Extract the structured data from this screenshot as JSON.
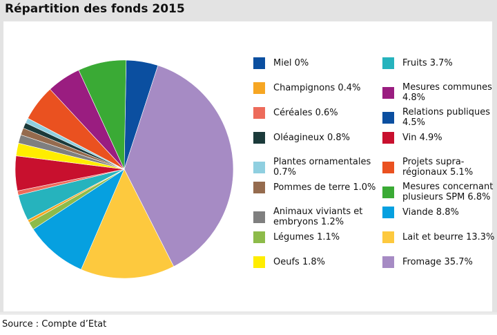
{
  "title": "Répartition des fonds 2015",
  "source": "Source : Compte d’Etat",
  "chart_data": {
    "type": "pie",
    "title": "Répartition des fonds 2015",
    "unit": "%",
    "legend_placement": "right",
    "slices": [
      {
        "name": "Relations publiques",
        "value": 4.5,
        "color": "#0b4fa0",
        "label": "Relations publiques 4.5%"
      },
      {
        "name": "Fromage",
        "value": 35.7,
        "color": "#a68bc4",
        "label": "Fromage 35.7%"
      },
      {
        "name": "Lait et beurre",
        "value": 13.3,
        "color": "#fdc93e",
        "label": "Lait et beurre 13.3%"
      },
      {
        "name": "Viande",
        "value": 8.8,
        "color": "#06a0e0",
        "label": "Viande 8.8%"
      },
      {
        "name": "Légumes",
        "value": 1.1,
        "color": "#8dbb4a",
        "label": "Légumes 1.1%"
      },
      {
        "name": "Champignons",
        "value": 0.4,
        "color": "#f6a623",
        "label": "Champignons 0.4%"
      },
      {
        "name": "Fruits",
        "value": 3.7,
        "color": "#26b3bd",
        "label": "Fruits 3.7%"
      },
      {
        "name": "Céréales",
        "value": 0.6,
        "color": "#ed6b5b",
        "label": "Céréales 0.6%"
      },
      {
        "name": "Vin",
        "value": 4.9,
        "color": "#c8102e",
        "label": "Vin 4.9%"
      },
      {
        "name": "Oeufs",
        "value": 1.8,
        "color": "#ffed00",
        "label": "Oeufs 1.8%"
      },
      {
        "name": "Animaux viviants et embryons",
        "value": 1.2,
        "color": "#7f7f7f",
        "label": "Animaux viviants et embryons 1.2%"
      },
      {
        "name": "Pommes de terre",
        "value": 1.0,
        "color": "#956b4e",
        "label": "Pommes de terre 1.0%"
      },
      {
        "name": "Oléagineux",
        "value": 0.8,
        "color": "#1b3a3a",
        "label": "Oléagineux 0.8%"
      },
      {
        "name": "Plantes ornamentales",
        "value": 0.7,
        "color": "#8fcfe0",
        "label": "Plantes ornamentales 0.7%"
      },
      {
        "name": "Miel",
        "value": 0,
        "color": "#0b4fa0",
        "label": "Miel 0%"
      },
      {
        "name": "Projets supra-régionaux",
        "value": 5.1,
        "color": "#ea5120",
        "label": "Projets supra-régionaux 5.1%"
      },
      {
        "name": "Mesures communes",
        "value": 4.8,
        "color": "#9a1d80",
        "label": "Mesures communes 4.8%"
      },
      {
        "name": "Mesures concernant plusieurs SPM",
        "value": 6.8,
        "color": "#3aaa35",
        "label": "Mesures concernant plusieurs SPM 6.8%"
      }
    ],
    "legend": {
      "left": [
        {
          "text": "Miel 0%",
          "color": "#0b4fa0"
        },
        {
          "text": "Champignons 0.4%",
          "color": "#f6a623"
        },
        {
          "text": "Céréales 0.6%",
          "color": "#ed6b5b"
        },
        {
          "text": "Oléagineux 0.8%",
          "color": "#1b3a3a"
        },
        {
          "text": "Plantes ornamentales 0.7%",
          "color": "#8fcfe0"
        },
        {
          "text": "Pommes de terre 1.0%",
          "color": "#956b4e"
        },
        {
          "text": "Animaux viviants et embryons 1.2%",
          "color": "#7f7f7f"
        },
        {
          "text": "Légumes 1.1%",
          "color": "#8dbb4a"
        },
        {
          "text": "Oeufs 1.8%",
          "color": "#ffed00"
        }
      ],
      "right": [
        {
          "text": "Fruits 3.7%",
          "color": "#26b3bd"
        },
        {
          "text": "Mesures communes 4.8%",
          "color": "#9a1d80"
        },
        {
          "text": "Relations publiques 4.5%",
          "color": "#0b4fa0"
        },
        {
          "text": "Vin 4.9%",
          "color": "#c8102e"
        },
        {
          "text": "Projets supra-régionaux 5.1%",
          "color": "#ea5120"
        },
        {
          "text": "Mesures concernant plusieurs SPM 6.8%",
          "color": "#3aaa35"
        },
        {
          "text": "Viande 8.8%",
          "color": "#06a0e0"
        },
        {
          "text": "Lait et beurre 13.3%",
          "color": "#fdc93e"
        },
        {
          "text": "Fromage 35.7%",
          "color": "#a68bc4"
        }
      ]
    }
  }
}
